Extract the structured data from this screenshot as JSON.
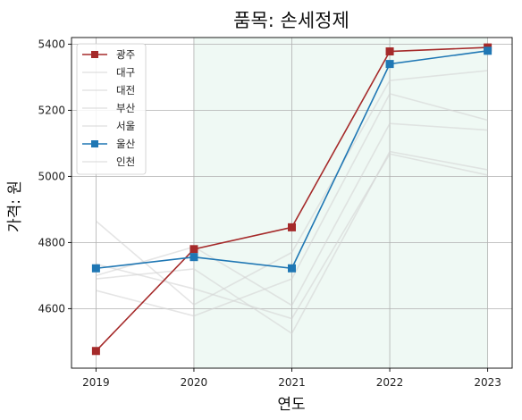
{
  "chart_data": {
    "type": "line",
    "title": "품목: 손세정제",
    "xlabel": "연도",
    "ylabel": "가격: 원",
    "x": [
      2019,
      2020,
      2021,
      2022,
      2023
    ],
    "xticks": [
      "2019",
      "2020",
      "2021",
      "2022",
      "2023"
    ],
    "yticks": [
      "4600",
      "4800",
      "5000",
      "5200",
      "5400"
    ],
    "ylim": [
      4420,
      5420
    ],
    "grid": true,
    "legend_position": "top-left",
    "shaded_x_range": [
      2020,
      2023
    ],
    "shaded_color": "#e5f5ec",
    "series": [
      {
        "name": "광주",
        "values": [
          4472,
          4780,
          4846,
          5378,
          5390
        ],
        "color": "#a52a2a",
        "highlight": true
      },
      {
        "name": "대구",
        "values": [
          4865,
          4612,
          4770,
          5290,
          5320
        ],
        "color": "#d3d3d3",
        "highlight": false
      },
      {
        "name": "대전",
        "values": [
          4700,
          4787,
          4610,
          5160,
          5140
        ],
        "color": "#d3d3d3",
        "highlight": false
      },
      {
        "name": "부산",
        "values": [
          4655,
          4578,
          4690,
          5250,
          5170
        ],
        "color": "#d3d3d3",
        "highlight": false
      },
      {
        "name": "서울",
        "values": [
          4690,
          4720,
          4525,
          5075,
          5020
        ],
        "color": "#d3d3d3",
        "highlight": false
      },
      {
        "name": "울산",
        "values": [
          4722,
          4756,
          4722,
          5340,
          5380
        ],
        "color": "#1f77b4",
        "highlight": true
      },
      {
        "name": "인천",
        "values": [
          4735,
          4660,
          4570,
          5068,
          5004
        ],
        "color": "#d3d3d3",
        "highlight": false
      }
    ]
  }
}
